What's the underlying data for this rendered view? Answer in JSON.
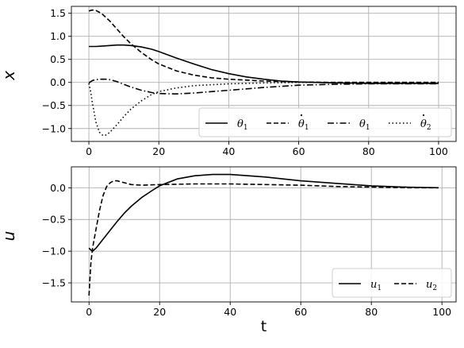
{
  "chart_data": [
    {
      "type": "line",
      "ylabel": "x",
      "xlim": [
        -5,
        105
      ],
      "ylim": [
        -1.28,
        1.65
      ],
      "xticks": [
        0,
        20,
        40,
        60,
        80,
        100
      ],
      "yticks": [
        -1.0,
        -0.5,
        0.0,
        0.5,
        1.0,
        1.5
      ],
      "grid": true,
      "legend_position": "lower-right",
      "series": [
        {
          "name": "θ1",
          "legend_base": "θ",
          "legend_sub": "1",
          "dot": false,
          "style": "solid",
          "x": [
            0,
            2,
            4,
            6,
            8,
            10,
            12,
            15,
            18,
            20,
            25,
            30,
            35,
            40,
            45,
            50,
            55,
            60,
            65,
            70,
            80,
            90,
            100
          ],
          "y": [
            0.78,
            0.78,
            0.79,
            0.8,
            0.81,
            0.81,
            0.8,
            0.77,
            0.72,
            0.67,
            0.53,
            0.4,
            0.28,
            0.19,
            0.12,
            0.07,
            0.03,
            0.01,
            0.0,
            -0.01,
            -0.02,
            -0.02,
            -0.02
          ]
        },
        {
          "name": "θ̇1",
          "legend_base": "θ",
          "legend_sub": "1",
          "dot": true,
          "style": "dashed",
          "x": [
            0,
            1,
            2,
            3,
            4,
            6,
            8,
            10,
            12,
            15,
            18,
            20,
            25,
            30,
            35,
            40,
            45,
            50,
            60,
            70,
            80,
            90,
            100
          ],
          "y": [
            1.55,
            1.57,
            1.56,
            1.52,
            1.47,
            1.33,
            1.16,
            0.99,
            0.84,
            0.65,
            0.49,
            0.4,
            0.25,
            0.16,
            0.1,
            0.07,
            0.05,
            0.03,
            0.01,
            0.0,
            0.0,
            0.0,
            0.0
          ]
        },
        {
          "name": "θ1",
          "legend_base": "θ",
          "legend_sub": "1",
          "dot": false,
          "style": "dashdot",
          "x": [
            0,
            1,
            2,
            3,
            4,
            5,
            6,
            8,
            10,
            12,
            15,
            18,
            20,
            25,
            30,
            40,
            50,
            60,
            70,
            80,
            90,
            100
          ],
          "y": [
            -0.01,
            0.04,
            0.06,
            0.07,
            0.07,
            0.07,
            0.06,
            0.02,
            -0.04,
            -0.1,
            -0.17,
            -0.22,
            -0.24,
            -0.25,
            -0.23,
            -0.17,
            -0.11,
            -0.06,
            -0.04,
            -0.03,
            -0.03,
            -0.03
          ]
        },
        {
          "name": "θ̇2",
          "legend_base": "θ",
          "legend_sub": "2",
          "dot": true,
          "style": "dotted",
          "x": [
            0,
            0.5,
            1,
            2,
            3,
            4,
            5,
            6,
            7,
            8,
            10,
            12,
            15,
            18,
            20,
            25,
            30,
            40,
            50,
            60,
            70,
            80,
            90,
            100
          ],
          "y": [
            -0.02,
            -0.2,
            -0.45,
            -0.86,
            -1.08,
            -1.15,
            -1.14,
            -1.08,
            -1.0,
            -0.92,
            -0.74,
            -0.58,
            -0.4,
            -0.26,
            -0.2,
            -0.12,
            -0.07,
            -0.03,
            -0.01,
            0.0,
            0.0,
            0.0,
            0.0,
            0.0
          ]
        }
      ]
    },
    {
      "type": "line",
      "ylabel": "u",
      "xlabel": "t",
      "xlim": [
        -5,
        104
      ],
      "ylim": [
        -1.8,
        0.33
      ],
      "xticks": [
        0,
        20,
        40,
        60,
        80,
        100
      ],
      "yticks": [
        -1.5,
        -1.0,
        -0.5,
        0.0
      ],
      "grid": true,
      "legend_position": "lower-right",
      "series": [
        {
          "name": "u1",
          "legend_base": "u",
          "legend_sub": "1",
          "dot": false,
          "style": "solid",
          "x": [
            0,
            0.5,
            1,
            2,
            3,
            4,
            5,
            6,
            8,
            10,
            12,
            15,
            18,
            20,
            25,
            30,
            35,
            40,
            45,
            50,
            60,
            70,
            80,
            90,
            99
          ],
          "y": [
            -0.95,
            -0.98,
            -1.0,
            -0.95,
            -0.88,
            -0.81,
            -0.74,
            -0.67,
            -0.53,
            -0.4,
            -0.29,
            -0.15,
            -0.04,
            0.03,
            0.14,
            0.19,
            0.21,
            0.21,
            0.19,
            0.17,
            0.11,
            0.07,
            0.03,
            0.01,
            0.0
          ]
        },
        {
          "name": "u2",
          "legend_base": "u",
          "legend_sub": "2",
          "dot": false,
          "style": "dashed",
          "x": [
            0,
            0.5,
            1,
            2,
            3,
            4,
            5,
            6,
            7,
            8,
            10,
            12,
            15,
            20,
            30,
            40,
            50,
            60,
            70,
            80,
            90,
            99
          ],
          "y": [
            -1.7,
            -1.2,
            -0.95,
            -0.65,
            -0.35,
            -0.12,
            0.02,
            0.08,
            0.11,
            0.11,
            0.08,
            0.05,
            0.04,
            0.05,
            0.06,
            0.06,
            0.05,
            0.04,
            0.02,
            0.01,
            0.0,
            0.0
          ]
        }
      ]
    }
  ]
}
